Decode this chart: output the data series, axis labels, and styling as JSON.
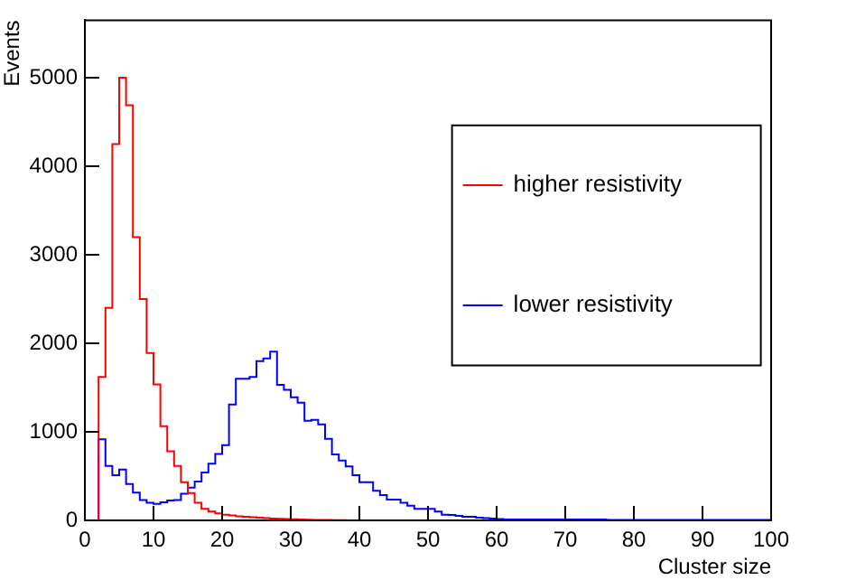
{
  "chart_data": {
    "type": "histogram",
    "xlabel": "Cluster size",
    "ylabel": "Events",
    "bins": [
      0,
      1,
      2,
      3,
      4,
      5,
      6,
      7,
      8,
      9,
      10,
      11,
      12,
      13,
      14,
      15,
      16,
      17,
      18,
      19,
      20,
      21,
      22,
      23,
      24,
      25,
      26,
      27,
      28,
      29,
      30,
      31,
      32,
      33,
      34,
      35,
      36,
      37,
      38,
      39,
      40,
      41,
      42,
      43,
      44,
      45,
      46,
      47,
      48,
      49,
      50,
      51,
      52,
      53,
      54,
      55,
      56,
      57,
      58,
      59,
      60,
      61,
      62,
      63,
      64,
      65,
      66,
      67,
      68,
      69,
      70,
      71,
      72,
      73,
      74,
      75,
      76,
      77,
      78,
      79,
      80,
      81,
      82,
      83,
      84,
      85,
      86,
      87,
      88,
      89,
      90,
      91,
      92,
      93,
      94,
      95,
      96,
      97,
      98,
      99,
      100
    ],
    "series": [
      {
        "name": "higher resistivity",
        "color": "#ff0000",
        "values": [
          0,
          0,
          1620,
          2400,
          4250,
          5000,
          4690,
          3200,
          2500,
          1890,
          1535,
          1065,
          780,
          615,
          430,
          310,
          200,
          130,
          100,
          80,
          65,
          55,
          45,
          40,
          35,
          30,
          25,
          20,
          18,
          15,
          12,
          10,
          8,
          6,
          5,
          4,
          3,
          2,
          0,
          0,
          0,
          0,
          0,
          0,
          0,
          0,
          0,
          0,
          0,
          0,
          0,
          0,
          0,
          0,
          0,
          0,
          0,
          0,
          0,
          0,
          0,
          0,
          0,
          0,
          0,
          0,
          0,
          0,
          0,
          0,
          0,
          0,
          0,
          0,
          0,
          0,
          0,
          0,
          0,
          0,
          0,
          0,
          0,
          0,
          0,
          0,
          0,
          0,
          0,
          0,
          0,
          0,
          0,
          0,
          0,
          0,
          0,
          0,
          0,
          0
        ]
      },
      {
        "name": "lower resistivity",
        "color": "#0000ff",
        "values": [
          0,
          0,
          915,
          615,
          510,
          575,
          410,
          315,
          230,
          200,
          185,
          205,
          225,
          230,
          300,
          370,
          440,
          540,
          640,
          750,
          850,
          1310,
          1600,
          1600,
          1620,
          1800,
          1830,
          1905,
          1530,
          1475,
          1390,
          1330,
          1125,
          1135,
          1085,
          920,
          745,
          675,
          610,
          510,
          430,
          430,
          335,
          285,
          235,
          235,
          200,
          165,
          130,
          130,
          130,
          100,
          65,
          60,
          50,
          40,
          40,
          30,
          25,
          20,
          15,
          10,
          10,
          10,
          10,
          10,
          10,
          10,
          10,
          10,
          10,
          10,
          10,
          10,
          10,
          10,
          5,
          5,
          5,
          5,
          5,
          5,
          5,
          5,
          5,
          5,
          5,
          5,
          5,
          5,
          5,
          5,
          5,
          5,
          5,
          5,
          5,
          5,
          5,
          5
        ]
      }
    ],
    "xlim": [
      0,
      100
    ],
    "xticks": [
      0,
      10,
      20,
      30,
      40,
      50,
      60,
      70,
      80,
      90,
      100
    ],
    "ylim": [
      0,
      5650
    ],
    "yticks": [
      0,
      1000,
      2000,
      3000,
      4000,
      5000
    ],
    "grid": false,
    "legend": "top right"
  }
}
